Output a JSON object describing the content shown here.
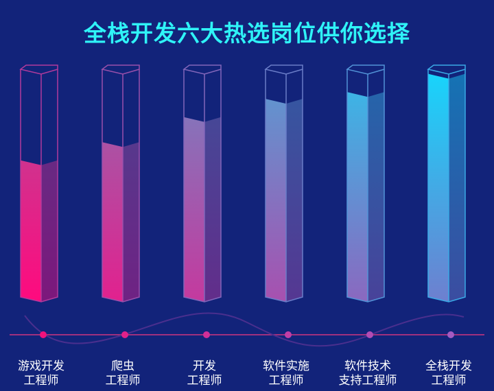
{
  "title": "全栈开发六大热选岗位供你选择",
  "colors": {
    "background": "#12237a",
    "title": "#2ff3f7",
    "bar_low": "#ff0a7e",
    "bar_high": "#18d4fb",
    "timeline_dot": "#f0127c"
  },
  "chart_data": {
    "type": "bar",
    "title": "全栈开发六大热选岗位供你选择",
    "xlabel": "",
    "ylabel": "",
    "ylim": [
      0,
      100
    ],
    "grid": false,
    "categories": [
      [
        "游戏开发",
        "工程师"
      ],
      [
        "爬虫",
        "工程师"
      ],
      [
        "开发",
        "工程师"
      ],
      [
        "软件实施",
        "工程师"
      ],
      [
        "软件技术",
        "支持工程师"
      ],
      [
        "全栈开发",
        "工程师"
      ]
    ],
    "values": [
      60,
      68,
      79,
      87,
      90,
      98
    ]
  }
}
